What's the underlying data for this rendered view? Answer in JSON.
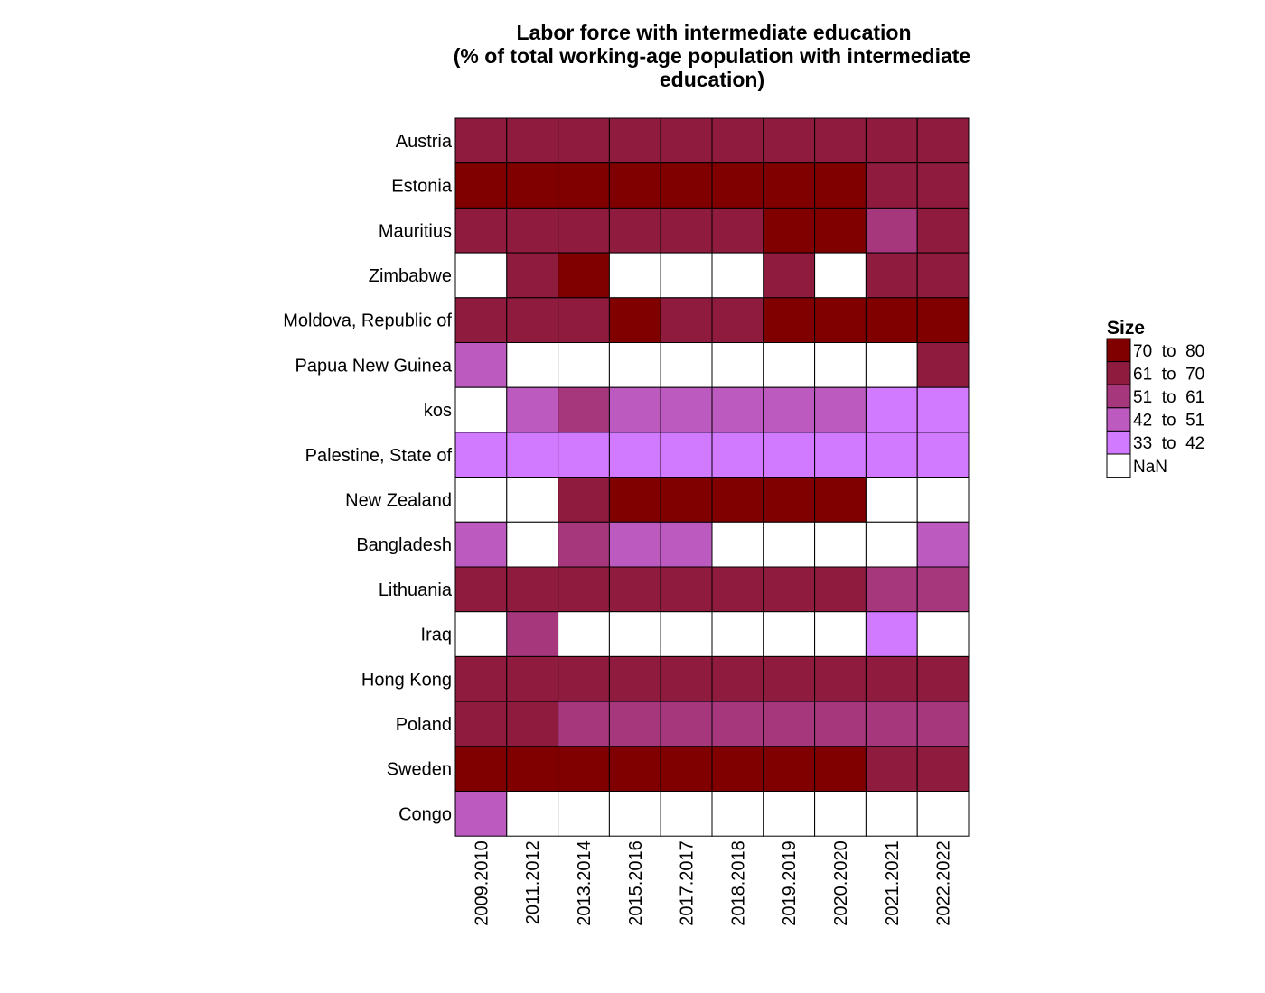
{
  "chart_data": {
    "type": "heatmap",
    "title": [
      "Labor force with intermediate education",
      "(% of total working-age population with intermediate",
      "education)"
    ],
    "rows": [
      "Austria",
      "Estonia",
      "Mauritius",
      "Zimbabwe",
      "Moldova, Republic of",
      "Papua New Guinea",
      "kos",
      "Palestine, State of",
      "New Zealand",
      "Bangladesh",
      "Lithuania",
      "Iraq",
      "Hong Kong",
      "Poland",
      "Sweden",
      "Congo"
    ],
    "columns": [
      "2009.2010",
      "2011.2012",
      "2013.2014",
      "2015.2016",
      "2017.2017",
      "2018.2018",
      "2019.2019",
      "2020.2020",
      "2021.2021",
      "2022.2022"
    ],
    "bins": [
      {
        "label": "70  to  80",
        "color": "#800000"
      },
      {
        "label": "61  to  70",
        "color": "#8f1b3f"
      },
      {
        "label": "51  to  61",
        "color": "#a7377d"
      },
      {
        "label": "42  to  51",
        "color": "#bd5ac0"
      },
      {
        "label": "33  to  42",
        "color": "#d27aff"
      },
      {
        "label": "NaN",
        "color": "#ffffff"
      }
    ],
    "cells": [
      [
        1,
        1,
        1,
        1,
        1,
        1,
        1,
        1,
        1,
        1
      ],
      [
        0,
        0,
        0,
        0,
        0,
        0,
        0,
        0,
        1,
        1
      ],
      [
        1,
        1,
        1,
        1,
        1,
        1,
        0,
        0,
        2,
        1
      ],
      [
        5,
        1,
        0,
        5,
        5,
        5,
        1,
        5,
        1,
        1
      ],
      [
        1,
        1,
        1,
        0,
        1,
        1,
        0,
        0,
        0,
        0
      ],
      [
        3,
        5,
        5,
        5,
        5,
        5,
        5,
        5,
        5,
        1
      ],
      [
        5,
        3,
        2,
        3,
        3,
        3,
        3,
        3,
        4,
        4
      ],
      [
        4,
        4,
        4,
        4,
        4,
        4,
        4,
        4,
        4,
        4
      ],
      [
        5,
        5,
        1,
        0,
        0,
        0,
        0,
        0,
        5,
        5
      ],
      [
        3,
        5,
        2,
        3,
        3,
        5,
        5,
        5,
        5,
        3
      ],
      [
        1,
        1,
        1,
        1,
        1,
        1,
        1,
        1,
        2,
        2
      ],
      [
        5,
        2,
        5,
        5,
        5,
        5,
        5,
        5,
        4,
        5
      ],
      [
        1,
        1,
        1,
        1,
        1,
        1,
        1,
        1,
        1,
        1
      ],
      [
        1,
        1,
        2,
        2,
        2,
        2,
        2,
        2,
        2,
        2
      ],
      [
        0,
        0,
        0,
        0,
        0,
        0,
        0,
        0,
        1,
        1
      ],
      [
        3,
        5,
        5,
        5,
        5,
        5,
        5,
        5,
        5,
        5
      ]
    ],
    "legend": {
      "title": "Size",
      "position": "right"
    }
  }
}
